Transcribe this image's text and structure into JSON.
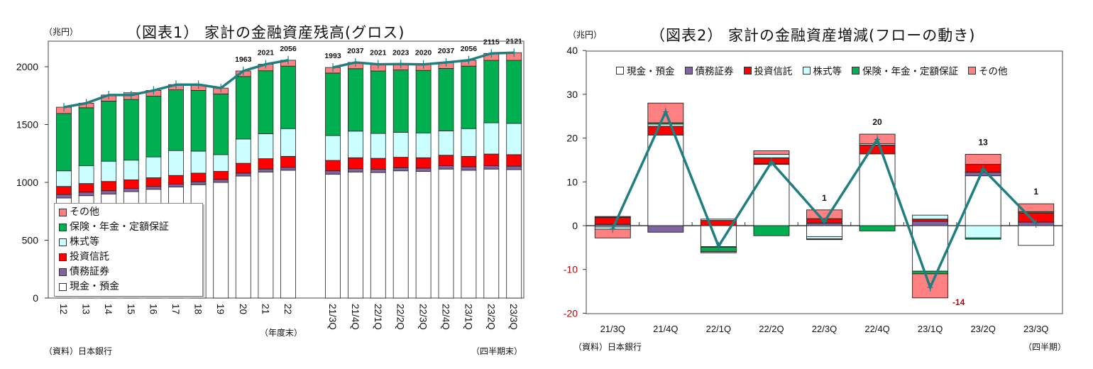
{
  "chart_data": [
    {
      "type": "bar",
      "stacked": true,
      "title": "（図表1） 家計の金融資産残高(グロス)",
      "ylabel": "（兆円）",
      "ylim": [
        0,
        2200
      ],
      "yticks": [
        0,
        500,
        1000,
        1500,
        2000
      ],
      "xlabel_annual": "（年度末）",
      "xlabel_quarterly": "（四半期末）",
      "source": "（資料）日本銀行",
      "categories": [
        "12",
        "13",
        "14",
        "15",
        "16",
        "17",
        "18",
        "19",
        "20",
        "21",
        "22",
        "21/3Q",
        "21/4Q",
        "22/1Q",
        "22/2Q",
        "22/3Q",
        "22/4Q",
        "23/1Q",
        "23/2Q",
        "23/3Q"
      ],
      "series": [
        {
          "name": "現金・預金",
          "color": "#ffffff",
          "values": [
            865,
            885,
            900,
            920,
            940,
            960,
            980,
            1000,
            1055,
            1090,
            1105,
            1070,
            1090,
            1085,
            1100,
            1095,
            1115,
            1105,
            1115,
            1110
          ]
        },
        {
          "name": "債務証券",
          "color": "#8064a2",
          "values": [
            30,
            30,
            28,
            27,
            25,
            25,
            25,
            25,
            25,
            25,
            25,
            30,
            28,
            28,
            27,
            28,
            30,
            30,
            30,
            30
          ]
        },
        {
          "name": "投資信託",
          "color": "#ff0000",
          "values": [
            70,
            75,
            80,
            75,
            75,
            75,
            75,
            70,
            85,
            90,
            95,
            90,
            95,
            95,
            90,
            90,
            90,
            90,
            100,
            100
          ]
        },
        {
          "name": "株式等",
          "color": "#ccffff",
          "values": [
            135,
            155,
            175,
            170,
            180,
            215,
            190,
            145,
            210,
            215,
            240,
            215,
            230,
            215,
            215,
            215,
            210,
            240,
            270,
            270
          ]
        },
        {
          "name": "保険・年金・定額保証",
          "color": "#00b050",
          "values": [
            495,
            500,
            520,
            525,
            525,
            525,
            525,
            525,
            540,
            545,
            540,
            540,
            540,
            540,
            540,
            540,
            540,
            540,
            540,
            545
          ]
        },
        {
          "name": "その他",
          "color": "#ff8080",
          "values": [
            55,
            40,
            52,
            58,
            50,
            45,
            50,
            50,
            48,
            56,
            51,
            48,
            54,
            58,
            51,
            52,
            52,
            51,
            60,
            66
          ]
        }
      ],
      "line": {
        "name": "合計",
        "color": "#1f7f80",
        "values": [
          1650,
          1685,
          1755,
          1755,
          1795,
          1845,
          1845,
          1815,
          1963,
          2021,
          2056,
          1993,
          2037,
          2021,
          2023,
          2020,
          2037,
          2056,
          2115,
          2121
        ]
      },
      "data_labels": {
        "20": "1963",
        "21": "2021",
        "22": "2056",
        "21/3Q": "1993",
        "21/4Q": "2037",
        "22/1Q": "2021",
        "22/2Q": "2023",
        "22/3Q": "2020",
        "22/4Q": "2037",
        "23/1Q": "2056",
        "23/2Q": "2115",
        "23/3Q": "2121"
      },
      "legend_position": "inside-bottom-left"
    },
    {
      "type": "bar",
      "stacked": true,
      "title": "（図表2） 家計の金融資産増減(フローの動き)",
      "ylabel": "（兆円）",
      "ylim": [
        -20,
        40
      ],
      "yticks": [
        -20,
        -10,
        0,
        10,
        20,
        30,
        40
      ],
      "xlabel": "（四半期）",
      "source": "（資料）日本銀行",
      "categories": [
        "21/3Q",
        "21/4Q",
        "22/1Q",
        "22/2Q",
        "22/3Q",
        "22/4Q",
        "23/1Q",
        "23/2Q",
        "23/3Q"
      ],
      "series": [
        {
          "name": "現金・預金",
          "color": "#ffffff",
          "values": [
            -0.3,
            20.7,
            -4.8,
            14.0,
            -2.5,
            16.4,
            -10.4,
            11.4,
            -4.5
          ]
        },
        {
          "name": "債務証券",
          "color": "#8064a2",
          "values": [
            0.3,
            -1.5,
            -0.1,
            0.1,
            0.6,
            0.0,
            1.0,
            0.8,
            0.8
          ]
        },
        {
          "name": "投資信託",
          "color": "#ff0000",
          "values": [
            1.6,
            2.0,
            1.2,
            1.4,
            1.0,
            2.0,
            0.5,
            1.8,
            2.1
          ]
        },
        {
          "name": "株式等",
          "color": "#ccffff",
          "values": [
            -0.5,
            0.5,
            0.3,
            0.8,
            -0.5,
            0.3,
            0.9,
            -2.8,
            0.0
          ]
        },
        {
          "name": "保険・年金・定額保証",
          "color": "#00b050",
          "values": [
            0.2,
            0.3,
            -1.0,
            -2.3,
            -0.2,
            -1.2,
            -0.6,
            -0.3,
            0.3
          ]
        },
        {
          "name": "その他",
          "color": "#ff8080",
          "values": [
            -2.0,
            4.5,
            -0.3,
            0.8,
            2.0,
            2.2,
            -5.5,
            2.3,
            1.8
          ]
        }
      ],
      "line": {
        "name": "合計",
        "color": "#1f7f80",
        "values": [
          -0.7,
          26.0,
          -4.7,
          14.5,
          0.9,
          19.7,
          -14.1,
          12.9,
          0.5
        ]
      },
      "data_labels": {
        "22/3Q": "1",
        "22/4Q": "20",
        "23/1Q": "-14",
        "23/2Q": "13",
        "23/3Q": "1"
      },
      "negative_tick_color": "#c00000",
      "legend_position": "top-inside"
    }
  ],
  "panel1": {
    "title": "（図表1） 家計の金融資産残高(グロス)",
    "unit": "（兆円）",
    "x_note_annual": "（年度末）",
    "x_note_quarterly": "（四半期末）",
    "source": "（資料）日本銀行",
    "legend": [
      "その他",
      "保険・年金・定額保証",
      "株式等",
      "投資信託",
      "債務証券",
      "現金・預金"
    ]
  },
  "panel2": {
    "title": "（図表2） 家計の金融資産増減(フローの動き)",
    "unit": "（兆円）",
    "x_note": "（四半期）",
    "source": "（資料）日本銀行",
    "legend": [
      "現金・預金",
      "債務証券",
      "投資信託",
      "株式等",
      "保険・年金・定額保証",
      "その他"
    ]
  }
}
